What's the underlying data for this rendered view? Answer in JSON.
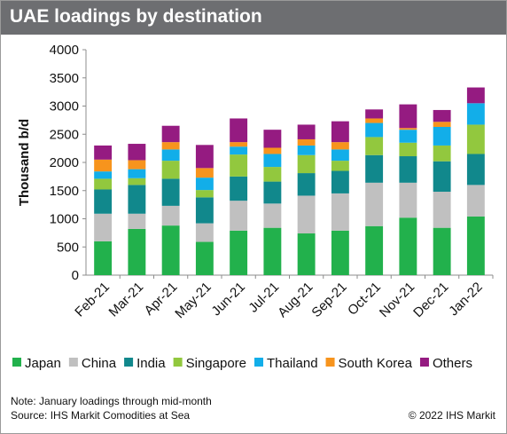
{
  "chart_data": {
    "type": "bar",
    "stacked": true,
    "title": "UAE loadings by destination",
    "ylabel": "Thousand b/d",
    "xlabel": "",
    "ylim": [
      0,
      4000
    ],
    "yticks": [
      0,
      500,
      1000,
      1500,
      2000,
      2500,
      3000,
      3500,
      4000
    ],
    "grid": false,
    "legend_position": "bottom",
    "categories": [
      "Feb-21",
      "Mar-21",
      "Apr-21",
      "May-21",
      "Jun-21",
      "Jul-21",
      "Aug-21",
      "Sep-21",
      "Oct-21",
      "Nov-21",
      "Dec-21",
      "Jan-22"
    ],
    "series": [
      {
        "name": "Japan",
        "color": "#22b14c",
        "values": [
          600,
          820,
          880,
          590,
          790,
          840,
          740,
          790,
          870,
          1020,
          840,
          1040
        ]
      },
      {
        "name": "China",
        "color": "#c0c0c0",
        "values": [
          490,
          270,
          350,
          330,
          530,
          430,
          670,
          660,
          770,
          620,
          640,
          560
        ]
      },
      {
        "name": "India",
        "color": "#11888c",
        "values": [
          430,
          510,
          480,
          460,
          430,
          390,
          400,
          400,
          490,
          470,
          540,
          550
        ]
      },
      {
        "name": "Singapore",
        "color": "#92c83e",
        "values": [
          190,
          120,
          320,
          130,
          390,
          260,
          320,
          180,
          320,
          240,
          280,
          520
        ]
      },
      {
        "name": "Thailand",
        "color": "#12aee9",
        "values": [
          130,
          160,
          200,
          220,
          140,
          230,
          170,
          200,
          250,
          230,
          330,
          380
        ]
      },
      {
        "name": "South Korea",
        "color": "#f7941d",
        "values": [
          210,
          160,
          130,
          170,
          80,
          110,
          110,
          130,
          80,
          30,
          90,
          0
        ]
      },
      {
        "name": "Others",
        "color": "#951b81",
        "values": [
          250,
          290,
          290,
          410,
          420,
          320,
          260,
          370,
          160,
          420,
          210,
          280
        ]
      }
    ]
  },
  "footer": {
    "note": "Note: January loadings through mid-month",
    "source": "Source: IHS Markit Comodities at Sea",
    "copyright": "© 2022 IHS Markit"
  }
}
